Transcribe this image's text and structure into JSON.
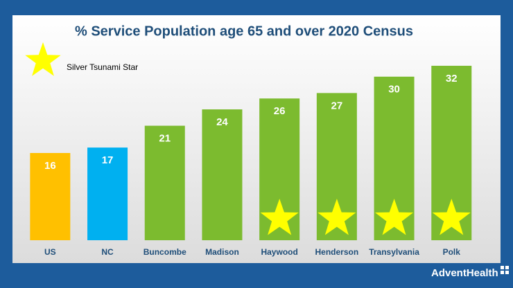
{
  "chart_data": {
    "type": "bar",
    "title": "% Service Population age 65 and over 2020 Census",
    "categories": [
      "US",
      "NC",
      "Buncombe",
      "Madison",
      "Haywood",
      "Henderson",
      "Transylvania",
      "Polk"
    ],
    "values": [
      16,
      17,
      21,
      24,
      26,
      27,
      30,
      32
    ],
    "colors": [
      "#ffc000",
      "#00b0f0",
      "#7cbb2f",
      "#7cbb2f",
      "#7cbb2f",
      "#7cbb2f",
      "#7cbb2f",
      "#7cbb2f"
    ],
    "stars": [
      false,
      false,
      false,
      false,
      true,
      true,
      true,
      true
    ],
    "star_color": "#ffff00",
    "legend": "Silver Tsunami Star",
    "ylim": [
      0,
      40
    ]
  },
  "logo": "AdventHealth"
}
